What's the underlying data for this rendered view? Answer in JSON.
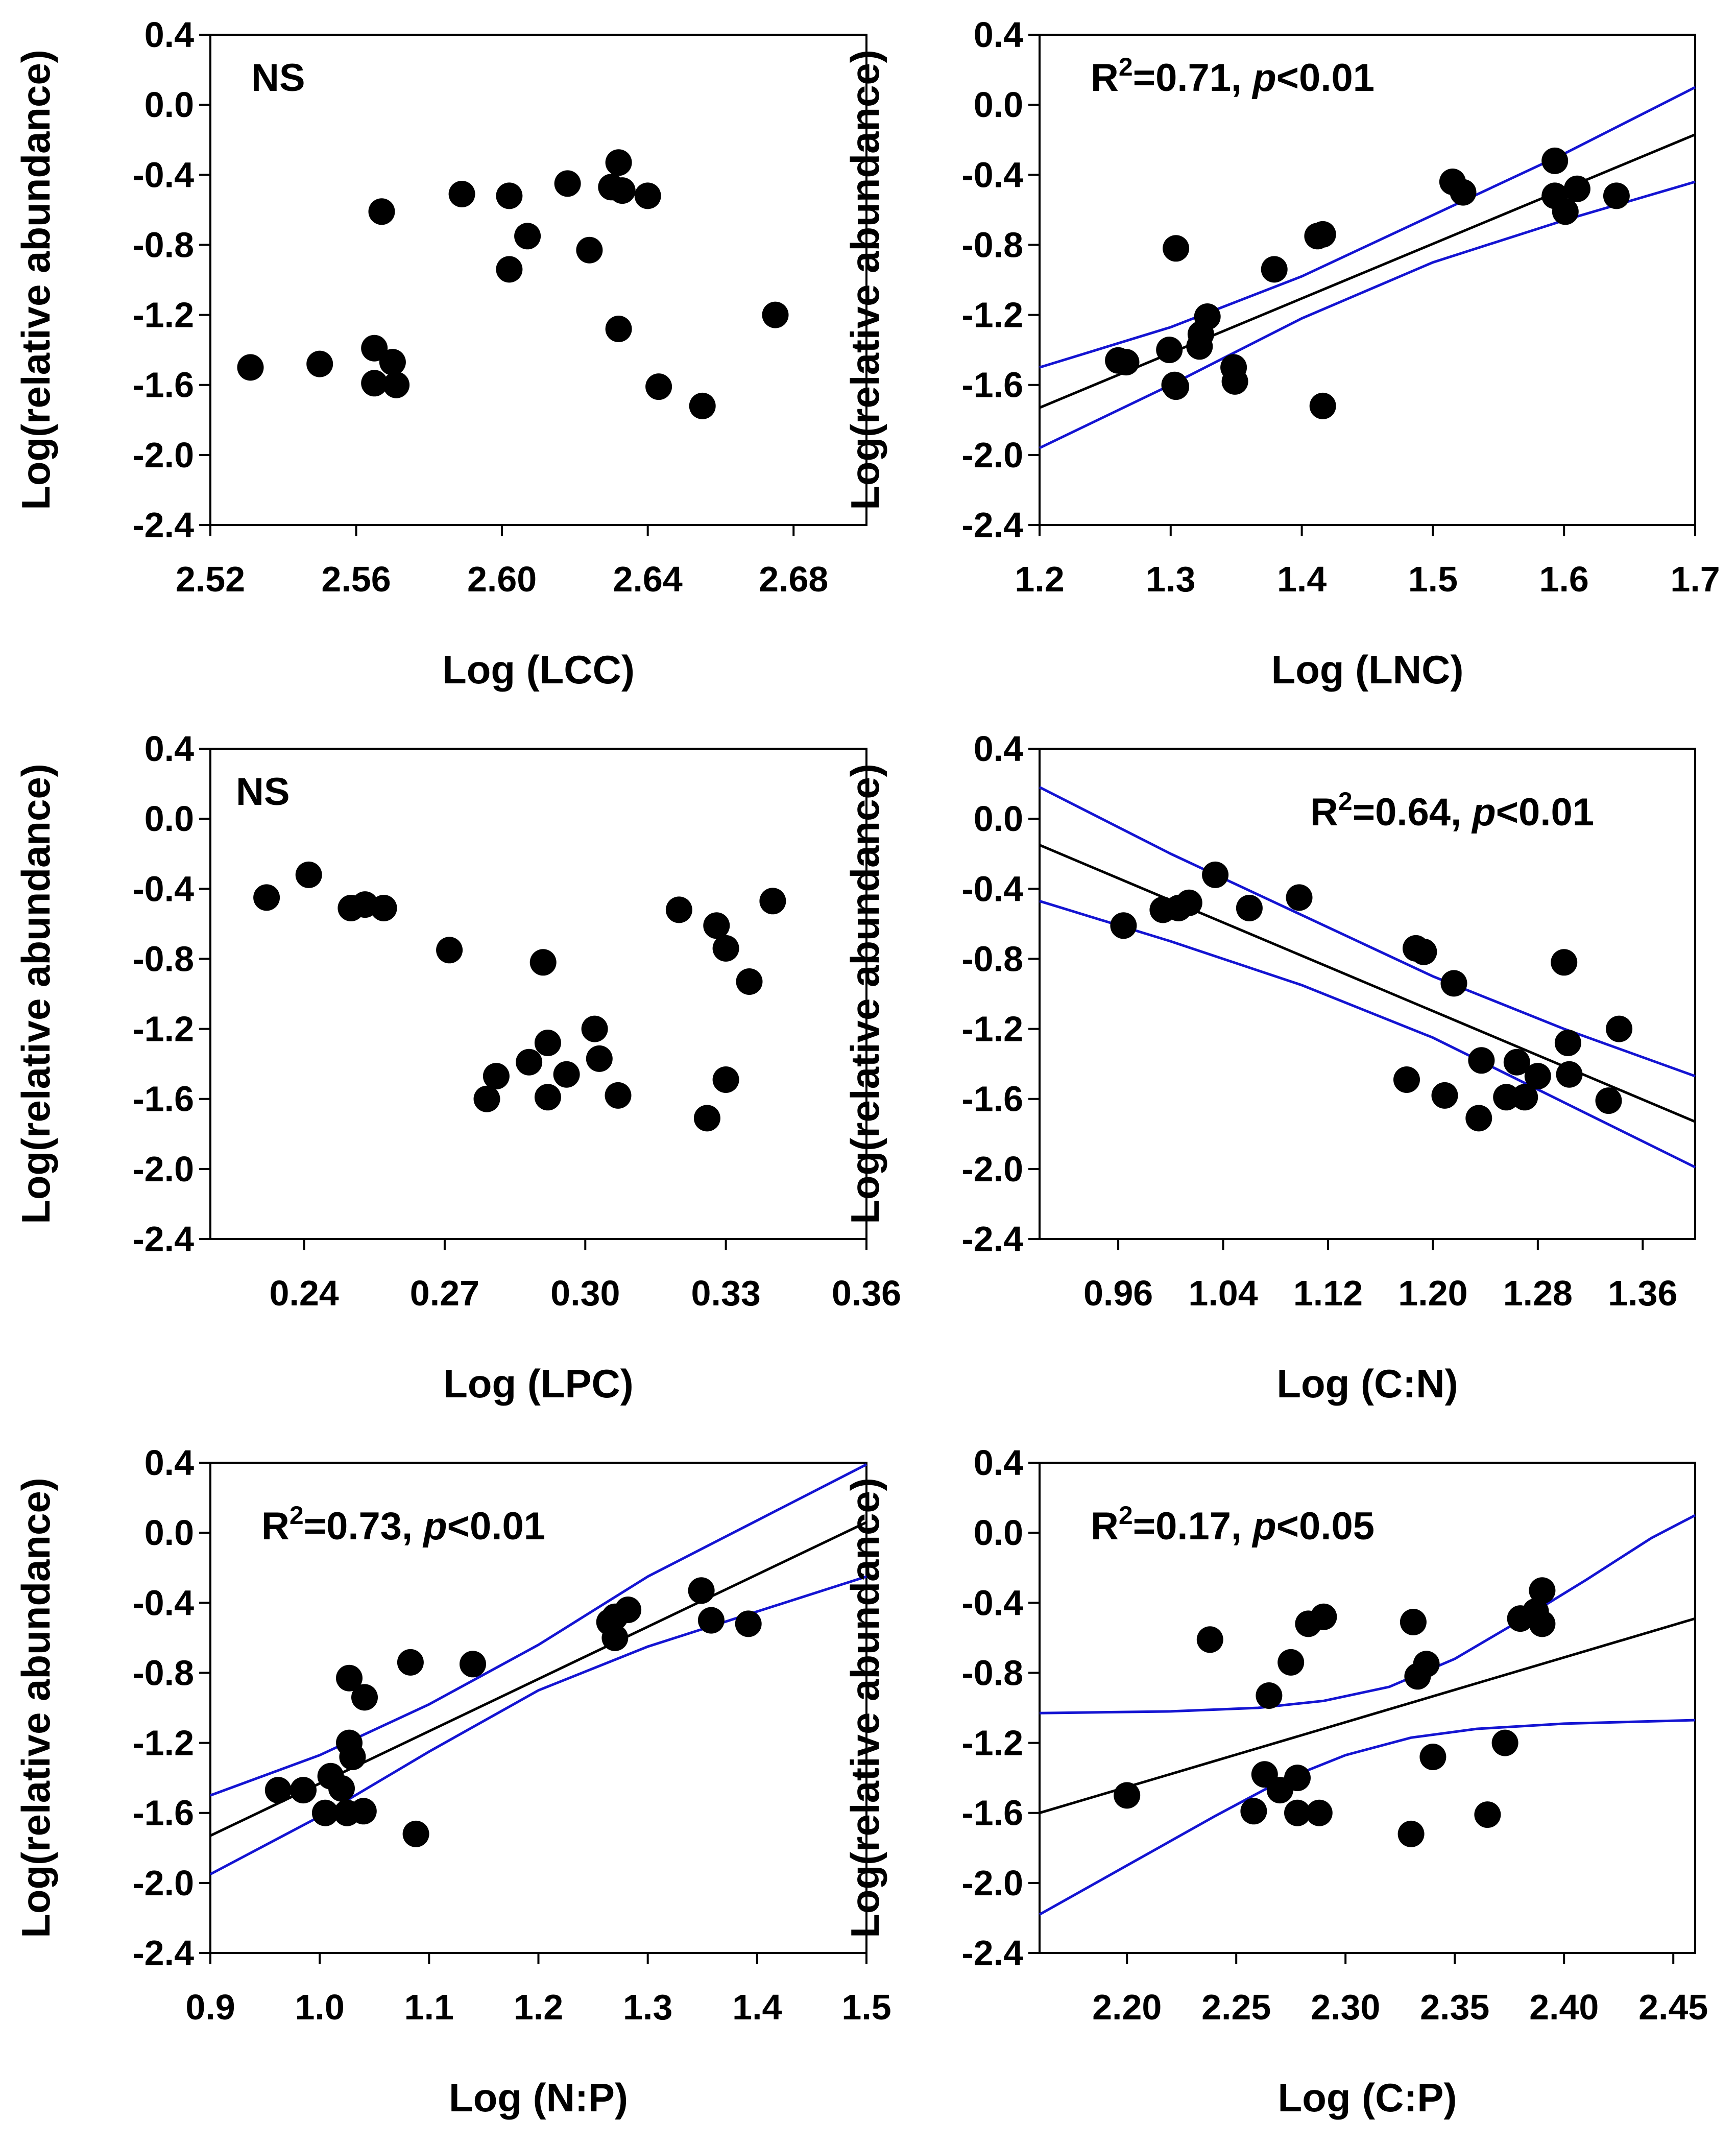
{
  "y_label": "Log(relative abundance)",
  "annotations": {
    "r2_prefix": "R",
    "r2_sup": "2",
    "p_symbol": "p"
  },
  "chart_data": [
    {
      "type": "scatter",
      "title": "",
      "xlabel": "Log (LCC)",
      "ylabel": "Log(relative abundance)",
      "xlim": [
        2.52,
        2.7
      ],
      "ylim": [
        -2.4,
        0.4
      ],
      "xticks": [
        "2.52",
        "2.56",
        "2.60",
        "2.64",
        "2.68"
      ],
      "yticks": [
        "0.4",
        "0.0",
        "-0.4",
        "-0.8",
        "-1.2",
        "-1.6",
        "-2.0",
        "-2.4"
      ],
      "annotation": {
        "kind": "ns",
        "text": "NS"
      },
      "fit": null,
      "points": [
        [
          2.531,
          -1.5
        ],
        [
          2.55,
          -1.48
        ],
        [
          2.565,
          -1.39
        ],
        [
          2.57,
          -1.47
        ],
        [
          2.565,
          -1.59
        ],
        [
          2.571,
          -1.6
        ],
        [
          2.567,
          -0.61
        ],
        [
          2.589,
          -0.51
        ],
        [
          2.602,
          -0.52
        ],
        [
          2.602,
          -0.94
        ],
        [
          2.607,
          -0.75
        ],
        [
          2.618,
          -0.45
        ],
        [
          2.624,
          -0.83
        ],
        [
          2.63,
          -0.47
        ],
        [
          2.632,
          -0.33
        ],
        [
          2.633,
          -0.49
        ],
        [
          2.64,
          -0.52
        ],
        [
          2.632,
          -1.28
        ],
        [
          2.643,
          -1.61
        ],
        [
          2.655,
          -1.72
        ],
        [
          2.675,
          -1.2
        ]
      ]
    },
    {
      "type": "scatter",
      "title": "",
      "xlabel": "Log (LNC)",
      "ylabel": "Log(relative abundance)",
      "xlim": [
        1.2,
        1.7
      ],
      "ylim": [
        -2.4,
        0.4
      ],
      "xticks": [
        "1.2",
        "1.3",
        "1.4",
        "1.5",
        "1.6",
        "1.7"
      ],
      "yticks": [
        "0.4",
        "0.0",
        "-0.4",
        "-0.8",
        "-1.2",
        "-1.6",
        "-2.0",
        "-2.4"
      ],
      "annotation": {
        "kind": "stat",
        "r2": "=0.71, ",
        "p": "<0.01"
      },
      "fit": {
        "line": [
          [
            1.2,
            -1.73
          ],
          [
            1.7,
            -0.17
          ]
        ],
        "upper": [
          [
            1.2,
            -1.5
          ],
          [
            1.3,
            -1.27
          ],
          [
            1.4,
            -0.98
          ],
          [
            1.5,
            -0.63
          ],
          [
            1.6,
            -0.28
          ],
          [
            1.7,
            0.1
          ]
        ],
        "lower": [
          [
            1.2,
            -1.96
          ],
          [
            1.3,
            -1.6
          ],
          [
            1.4,
            -1.22
          ],
          [
            1.5,
            -0.9
          ],
          [
            1.6,
            -0.66
          ],
          [
            1.7,
            -0.44
          ]
        ]
      },
      "points": [
        [
          1.26,
          -1.46
        ],
        [
          1.266,
          -1.47
        ],
        [
          1.299,
          -1.4
        ],
        [
          1.304,
          -0.82
        ],
        [
          1.303,
          -1.6
        ],
        [
          1.304,
          -1.61
        ],
        [
          1.322,
          -1.38
        ],
        [
          1.323,
          -1.31
        ],
        [
          1.328,
          -1.21
        ],
        [
          1.348,
          -1.5
        ],
        [
          1.349,
          -1.58
        ],
        [
          1.379,
          -0.94
        ],
        [
          1.412,
          -0.75
        ],
        [
          1.416,
          -0.74
        ],
        [
          1.416,
          -1.72
        ],
        [
          1.515,
          -0.44
        ],
        [
          1.523,
          -0.5
        ],
        [
          1.593,
          -0.32
        ],
        [
          1.593,
          -0.52
        ],
        [
          1.601,
          -0.61
        ],
        [
          1.61,
          -0.48
        ],
        [
          1.64,
          -0.52
        ]
      ]
    },
    {
      "type": "scatter",
      "title": "",
      "xlabel": "Log (LPC)",
      "ylabel": "Log(relative abundance)",
      "xlim": [
        0.22,
        0.36
      ],
      "ylim": [
        -2.4,
        0.4
      ],
      "xticks": [
        "0.24",
        "0.27",
        "0.30",
        "0.33",
        "0.36"
      ],
      "yticks": [
        "0.4",
        "0.0",
        "-0.4",
        "-0.8",
        "-1.2",
        "-1.6",
        "-2.0",
        "-2.4"
      ],
      "annotation": {
        "kind": "ns",
        "text": "NS"
      },
      "fit": null,
      "points": [
        [
          0.232,
          -0.45
        ],
        [
          0.241,
          -0.32
        ],
        [
          0.25,
          -0.51
        ],
        [
          0.253,
          -0.49
        ],
        [
          0.257,
          -0.51
        ],
        [
          0.271,
          -0.75
        ],
        [
          0.291,
          -0.82
        ],
        [
          0.279,
          -1.6
        ],
        [
          0.281,
          -1.47
        ],
        [
          0.288,
          -1.39
        ],
        [
          0.292,
          -1.28
        ],
        [
          0.292,
          -1.59
        ],
        [
          0.296,
          -1.46
        ],
        [
          0.302,
          -1.2
        ],
        [
          0.303,
          -1.37
        ],
        [
          0.307,
          -1.58
        ],
        [
          0.32,
          -0.52
        ],
        [
          0.328,
          -0.61
        ],
        [
          0.33,
          -0.74
        ],
        [
          0.335,
          -0.93
        ],
        [
          0.34,
          -0.47
        ],
        [
          0.326,
          -1.71
        ],
        [
          0.33,
          -1.49
        ]
      ]
    },
    {
      "type": "scatter",
      "title": "",
      "xlabel": "Log (C:N)",
      "ylabel": "Log(relative abundance)",
      "xlim": [
        0.9,
        1.4
      ],
      "ylim": [
        -2.4,
        0.4
      ],
      "xticks": [
        "0.96",
        "1.04",
        "1.12",
        "1.20",
        "1.28",
        "1.36"
      ],
      "yticks": [
        "0.4",
        "0.0",
        "-0.4",
        "-0.8",
        "-1.2",
        "-1.6",
        "-2.0",
        "-2.4"
      ],
      "annotation": {
        "kind": "stat",
        "r2": "=0.64, ",
        "p": "<0.01"
      },
      "fit": {
        "line": [
          [
            0.9,
            -0.15
          ],
          [
            1.4,
            -1.73
          ]
        ],
        "upper": [
          [
            0.9,
            0.18
          ],
          [
            1.0,
            -0.2
          ],
          [
            1.1,
            -0.55
          ],
          [
            1.2,
            -0.9
          ],
          [
            1.3,
            -1.2
          ],
          [
            1.4,
            -1.47
          ]
        ],
        "lower": [
          [
            0.9,
            -0.47
          ],
          [
            1.0,
            -0.7
          ],
          [
            1.1,
            -0.95
          ],
          [
            1.2,
            -1.25
          ],
          [
            1.3,
            -1.62
          ],
          [
            1.4,
            -1.99
          ]
        ]
      },
      "points": [
        [
          0.964,
          -0.61
        ],
        [
          0.994,
          -0.52
        ],
        [
          1.006,
          -0.51
        ],
        [
          1.014,
          -0.48
        ],
        [
          1.034,
          -0.32
        ],
        [
          1.06,
          -0.51
        ],
        [
          1.098,
          -0.45
        ],
        [
          1.18,
          -1.49
        ],
        [
          1.187,
          -0.74
        ],
        [
          1.193,
          -0.76
        ],
        [
          1.209,
          -1.58
        ],
        [
          1.216,
          -0.94
        ],
        [
          1.235,
          -1.71
        ],
        [
          1.237,
          -1.38
        ],
        [
          1.256,
          -1.59
        ],
        [
          1.264,
          -1.39
        ],
        [
          1.27,
          -1.59
        ],
        [
          1.28,
          -1.47
        ],
        [
          1.3,
          -0.82
        ],
        [
          1.303,
          -1.28
        ],
        [
          1.304,
          -1.46
        ],
        [
          1.334,
          -1.61
        ],
        [
          1.342,
          -1.2
        ]
      ]
    },
    {
      "type": "scatter",
      "title": "",
      "xlabel": "Log (N:P)",
      "ylabel": "Log(relative abundance)",
      "xlim": [
        0.9,
        1.5
      ],
      "ylim": [
        -2.4,
        0.4
      ],
      "xticks": [
        "0.9",
        "1.0",
        "1.1",
        "1.2",
        "1.3",
        "1.4",
        "1.5"
      ],
      "yticks": [
        "0.4",
        "0.0",
        "-0.4",
        "-0.8",
        "-1.2",
        "-1.6",
        "-2.0",
        "-2.4"
      ],
      "annotation": {
        "kind": "stat",
        "r2": "=0.73, ",
        "p": "<0.01"
      },
      "fit": {
        "line": [
          [
            0.9,
            -1.73
          ],
          [
            1.5,
            0.06
          ]
        ],
        "upper": [
          [
            0.9,
            -1.5
          ],
          [
            1.0,
            -1.27
          ],
          [
            1.1,
            -0.98
          ],
          [
            1.2,
            -0.64
          ],
          [
            1.3,
            -0.25
          ],
          [
            1.4,
            0.07
          ],
          [
            1.5,
            0.39
          ]
        ],
        "lower": [
          [
            0.9,
            -1.95
          ],
          [
            1.0,
            -1.62
          ],
          [
            1.1,
            -1.25
          ],
          [
            1.2,
            -0.9
          ],
          [
            1.3,
            -0.65
          ],
          [
            1.4,
            -0.45
          ],
          [
            1.5,
            -0.25
          ]
        ]
      },
      "points": [
        [
          0.962,
          -1.47
        ],
        [
          0.985,
          -1.47
        ],
        [
          1.005,
          -1.6
        ],
        [
          1.01,
          -1.39
        ],
        [
          1.02,
          -1.46
        ],
        [
          1.025,
          -1.6
        ],
        [
          1.027,
          -0.83
        ],
        [
          1.027,
          -1.2
        ],
        [
          1.03,
          -1.28
        ],
        [
          1.04,
          -1.59
        ],
        [
          1.041,
          -0.94
        ],
        [
          1.083,
          -0.74
        ],
        [
          1.088,
          -1.72
        ],
        [
          1.14,
          -0.75
        ],
        [
          1.265,
          -0.51
        ],
        [
          1.27,
          -0.48
        ],
        [
          1.27,
          -0.6
        ],
        [
          1.282,
          -0.44
        ],
        [
          1.349,
          -0.33
        ],
        [
          1.358,
          -0.5
        ],
        [
          1.392,
          -0.52
        ]
      ]
    },
    {
      "type": "scatter",
      "title": "",
      "xlabel": "Log (C:P)",
      "ylabel": "Log(relative abundance)",
      "xlim": [
        2.16,
        2.46
      ],
      "ylim": [
        -2.4,
        0.4
      ],
      "xticks": [
        "2.20",
        "2.25",
        "2.30",
        "2.35",
        "2.40",
        "2.45"
      ],
      "yticks": [
        "0.4",
        "0.0",
        "-0.4",
        "-0.8",
        "-1.2",
        "-1.6",
        "-2.0",
        "-2.4"
      ],
      "annotation": {
        "kind": "stat",
        "r2": "=0.17, ",
        "p": "<0.05"
      },
      "fit": {
        "line": [
          [
            2.16,
            -1.6
          ],
          [
            2.46,
            -0.49
          ]
        ],
        "upper": [
          [
            2.16,
            -1.03
          ],
          [
            2.22,
            -1.02
          ],
          [
            2.26,
            -1.0
          ],
          [
            2.29,
            -0.96
          ],
          [
            2.32,
            -0.88
          ],
          [
            2.35,
            -0.72
          ],
          [
            2.38,
            -0.5
          ],
          [
            2.41,
            -0.27
          ],
          [
            2.44,
            -0.03
          ],
          [
            2.46,
            0.1
          ]
        ],
        "lower": [
          [
            2.16,
            -2.18
          ],
          [
            2.2,
            -1.9
          ],
          [
            2.24,
            -1.62
          ],
          [
            2.27,
            -1.42
          ],
          [
            2.3,
            -1.27
          ],
          [
            2.33,
            -1.17
          ],
          [
            2.36,
            -1.12
          ],
          [
            2.4,
            -1.09
          ],
          [
            2.46,
            -1.07
          ]
        ]
      },
      "points": [
        [
          2.2,
          -1.5
        ],
        [
          2.238,
          -0.61
        ],
        [
          2.258,
          -1.59
        ],
        [
          2.263,
          -1.38
        ],
        [
          2.265,
          -0.93
        ],
        [
          2.27,
          -1.47
        ],
        [
          2.275,
          -0.74
        ],
        [
          2.278,
          -1.4
        ],
        [
          2.278,
          -1.6
        ],
        [
          2.283,
          -0.52
        ],
        [
          2.288,
          -1.6
        ],
        [
          2.29,
          -0.48
        ],
        [
          2.33,
          -1.72
        ],
        [
          2.331,
          -0.51
        ],
        [
          2.333,
          -0.82
        ],
        [
          2.337,
          -0.75
        ],
        [
          2.34,
          -1.28
        ],
        [
          2.365,
          -1.61
        ],
        [
          2.373,
          -1.2
        ],
        [
          2.38,
          -0.49
        ],
        [
          2.387,
          -0.45
        ],
        [
          2.39,
          -0.33
        ],
        [
          2.39,
          -0.52
        ]
      ]
    }
  ]
}
